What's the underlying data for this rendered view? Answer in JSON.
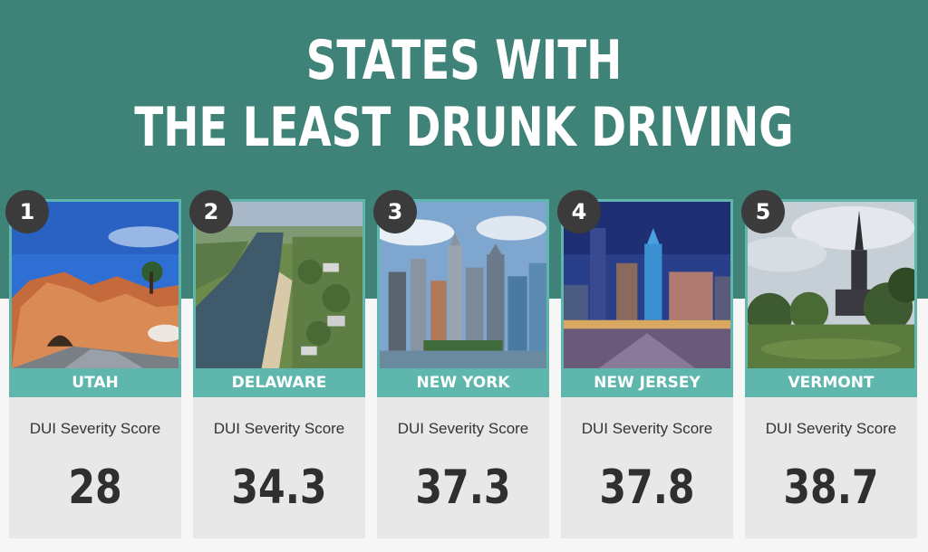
{
  "title": {
    "line1": "STATES WITH",
    "line2": "THE LEAST DRUNK DRIVING"
  },
  "colors": {
    "band": "#3e8278",
    "accent": "#5fb6ac",
    "badge": "#3b3b3b",
    "score_bg": "#e8e8e8"
  },
  "cards": [
    {
      "rank": "1",
      "state": "UTAH",
      "metric_label": "DUI Severity Score",
      "score": "28",
      "photo": "red-rock-arch-photo"
    },
    {
      "rank": "2",
      "state": "DELAWARE",
      "metric_label": "DUI Severity Score",
      "score": "34.3",
      "photo": "river-aerial-photo"
    },
    {
      "rank": "3",
      "state": "NEW YORK",
      "metric_label": "DUI Severity Score",
      "score": "37.3",
      "photo": "city-skyline-photo"
    },
    {
      "rank": "4",
      "state": "NEW JERSEY",
      "metric_label": "DUI Severity Score",
      "score": "37.8",
      "photo": "waterfront-night-photo"
    },
    {
      "rank": "5",
      "state": "VERMONT",
      "metric_label": "DUI Severity Score",
      "score": "38.7",
      "photo": "church-steeple-photo"
    }
  ]
}
